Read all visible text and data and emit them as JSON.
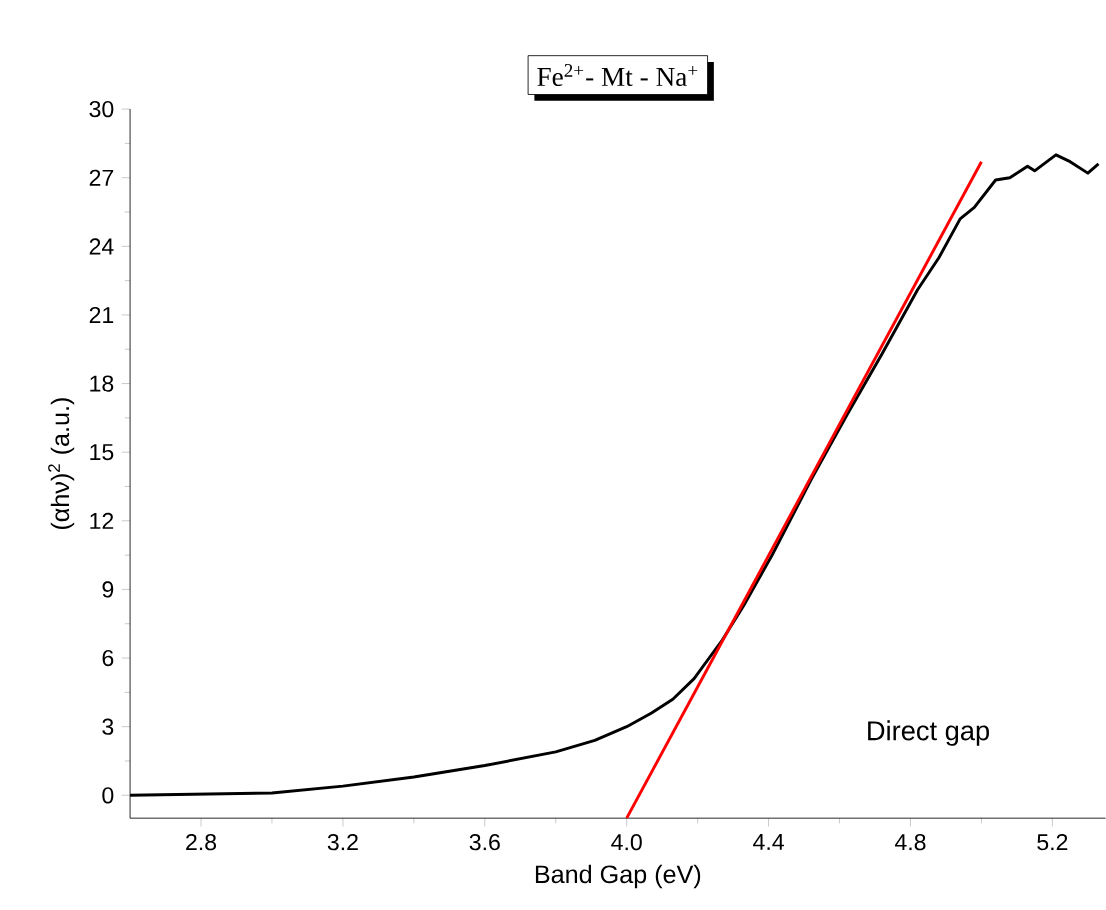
{
  "chart_data": {
    "type": "line",
    "title": "Fe$^{2+}$- Mt - Na$^{+}$",
    "xlabel": "Band Gap (eV)",
    "ylabel": "(αhν)$^{2}$ (a.u.)",
    "xlim": [
      2.6,
      5.35
    ],
    "xticks": [
      2.8,
      3.2,
      3.6,
      {
        "value": 4,
        "label": "4.0"
      },
      4.4,
      4.8,
      5.2
    ],
    "ylim": [
      -1,
      30
    ],
    "yticks": [
      0,
      3,
      6,
      9,
      12,
      15,
      18,
      21,
      24,
      27,
      30
    ],
    "annotations": [
      "Direct gap"
    ],
    "series": [
      {
        "color": "#000000",
        "x": [
          2.6,
          3.0,
          3.2,
          3.4,
          3.6,
          3.8,
          3.91,
          4.0,
          4.07,
          4.13,
          4.19,
          4.27,
          4.33,
          4.41,
          4.52,
          4.62,
          4.72,
          4.82,
          4.88,
          4.94,
          4.98,
          5.04,
          5.08,
          5.13,
          5.15,
          5.21,
          5.25,
          5.3,
          5.33
        ],
        "values": [
          0,
          0.1,
          0.4,
          0.8,
          1.3,
          1.9,
          2.4,
          3.0,
          3.6,
          4.2,
          5.1,
          6.8,
          8.3,
          10.5,
          13.8,
          16.6,
          19.3,
          22.1,
          23.5,
          25.2,
          25.7,
          26.9,
          27.0,
          27.5,
          27.3,
          28.0,
          27.7,
          27.2,
          27.6
        ]
      },
      {
        "color": "#ff0000",
        "x": [
          4.0,
          5.0
        ],
        "values": [
          -1,
          27.7
        ]
      }
    ]
  }
}
